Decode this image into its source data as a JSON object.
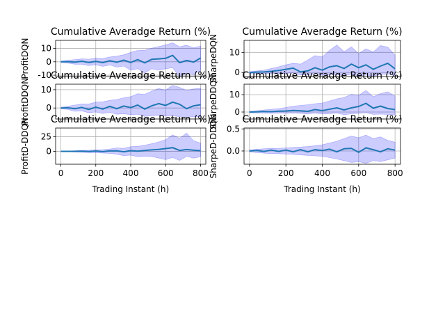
{
  "figure": {
    "band_color": "#0000ff",
    "band_alpha": 0.2,
    "line_color": "#1f77b4"
  },
  "chart_data": [
    {
      "type": "line",
      "title": "Cumulative Averadge Return (%)",
      "xlabel": "",
      "ylabel": "ProfitDQN",
      "xlim": [
        -30,
        830
      ],
      "ylim": [
        -11,
        16
      ],
      "xticks": [
        0,
        200,
        400,
        600,
        800
      ],
      "yticks": [
        -10,
        0,
        10
      ],
      "show_xticklabels": false,
      "grid": true,
      "x": [
        0,
        40,
        80,
        120,
        160,
        200,
        240,
        280,
        320,
        360,
        400,
        440,
        480,
        520,
        560,
        600,
        640,
        680,
        720,
        760,
        800
      ],
      "mean": [
        0,
        0.1,
        -0.2,
        0.4,
        -0.5,
        0.3,
        -0.6,
        0.8,
        -0.3,
        1.2,
        -0.5,
        1.6,
        -0.8,
        1.8,
        2.2,
        2.6,
        4.8,
        -0.6,
        1.0,
        -0.2,
        2.8
      ],
      "upper": [
        0.5,
        1.2,
        1.6,
        2.2,
        2.0,
        2.6,
        2.4,
        3.6,
        4.2,
        5.2,
        7.0,
        8.4,
        8.6,
        10.2,
        11.4,
        12.6,
        14.2,
        11.2,
        12.4,
        10.4,
        11.8
      ],
      "lower": [
        -0.5,
        -1.0,
        -1.8,
        -1.8,
        -2.8,
        -2.2,
        -3.4,
        -2.4,
        -4.0,
        -3.2,
        -6.2,
        -5.2,
        -8.4,
        -5.2,
        -6.2,
        -5.2,
        -4.4,
        -11.2,
        -8.4,
        -9.6,
        -6.4
      ]
    },
    {
      "type": "line",
      "title": "Cumulative Averadge Return (%)",
      "xlabel": "",
      "ylabel": "SharpeDQN",
      "xlim": [
        -30,
        830
      ],
      "ylim": [
        -2,
        16
      ],
      "xticks": [
        0,
        200,
        400,
        600,
        800
      ],
      "yticks": [
        0,
        10
      ],
      "show_xticklabels": false,
      "grid": true,
      "x": [
        0,
        40,
        80,
        120,
        160,
        200,
        240,
        280,
        320,
        360,
        400,
        440,
        480,
        520,
        560,
        600,
        640,
        680,
        720,
        760,
        800
      ],
      "mean": [
        0,
        0.2,
        0.3,
        0.6,
        1.0,
        1.6,
        2.2,
        0.3,
        0.8,
        2.4,
        1.2,
        2.8,
        3.4,
        2.0,
        4.2,
        2.4,
        3.8,
        1.6,
        3.2,
        4.6,
        1.8
      ],
      "upper": [
        0.4,
        0.8,
        1.2,
        2.0,
        2.8,
        3.8,
        4.6,
        4.2,
        6.2,
        8.4,
        7.8,
        11.0,
        13.6,
        10.4,
        12.8,
        9.4,
        11.8,
        10.2,
        13.4,
        12.6,
        8.6
      ],
      "lower": [
        -0.4,
        -0.4,
        -0.6,
        -0.6,
        -0.6,
        -0.4,
        -0.2,
        -1.2,
        -1.2,
        -0.6,
        -1.4,
        -1.0,
        -1.0,
        -1.6,
        -0.8,
        -1.8,
        -1.2,
        -1.8,
        -1.0,
        -0.8,
        -1.6
      ]
    },
    {
      "type": "line",
      "title": "Cumulative Averadge Return (%)",
      "xlabel": "",
      "ylabel": "ProfitDDQN",
      "xlim": [
        -30,
        830
      ],
      "ylim": [
        -6,
        13
      ],
      "xticks": [
        0,
        200,
        400,
        600,
        800
      ],
      "yticks": [
        0,
        10
      ],
      "show_xticklabels": false,
      "grid": true,
      "x": [
        0,
        40,
        80,
        120,
        160,
        200,
        240,
        280,
        320,
        360,
        400,
        440,
        480,
        520,
        560,
        600,
        640,
        680,
        720,
        760,
        800
      ],
      "mean": [
        0,
        0.1,
        -0.4,
        0.3,
        -0.8,
        0.5,
        -0.6,
        0.9,
        -0.4,
        1.1,
        0.2,
        1.6,
        -0.6,
        1.2,
        2.4,
        1.4,
        3.2,
        2.0,
        -0.4,
        1.2,
        1.8
      ],
      "upper": [
        0.4,
        1.0,
        1.6,
        2.2,
        2.2,
        3.2,
        3.4,
        4.2,
        4.6,
        5.6,
        6.2,
        7.8,
        7.4,
        9.2,
        10.6,
        9.8,
        12.4,
        11.2,
        9.6,
        10.4,
        10.8
      ],
      "lower": [
        -0.4,
        -0.8,
        -1.8,
        -1.6,
        -2.6,
        -2.2,
        -3.0,
        -2.4,
        -3.4,
        -3.2,
        -3.6,
        -3.4,
        -4.6,
        -4.2,
        -4.0,
        -4.4,
        -4.2,
        -4.8,
        -5.4,
        -4.6,
        -4.8
      ]
    },
    {
      "type": "line",
      "title": "Cumulative Averadge Return (%)",
      "xlabel": "",
      "ylabel": "SharpeDDQN",
      "xlim": [
        -30,
        830
      ],
      "ylim": [
        -4,
        16
      ],
      "xticks": [
        0,
        200,
        400,
        600,
        800
      ],
      "yticks": [
        0,
        10
      ],
      "show_xticklabels": false,
      "grid": true,
      "x": [
        0,
        40,
        80,
        120,
        160,
        200,
        240,
        280,
        320,
        360,
        400,
        440,
        480,
        520,
        560,
        600,
        640,
        680,
        720,
        760,
        800
      ],
      "mean": [
        0,
        0.1,
        0.3,
        0.2,
        0.5,
        0.6,
        0.9,
        0.7,
        0.4,
        1.4,
        0.8,
        1.6,
        2.4,
        1.2,
        2.4,
        3.2,
        5.0,
        2.2,
        3.4,
        2.0,
        1.4
      ],
      "upper": [
        0.4,
        0.8,
        1.2,
        1.6,
        2.0,
        2.6,
        3.4,
        3.8,
        4.2,
        4.8,
        5.2,
        6.4,
        7.6,
        8.4,
        10.2,
        9.6,
        12.4,
        8.8,
        10.6,
        11.6,
        9.2
      ],
      "lower": [
        -0.4,
        -0.6,
        -0.6,
        -0.8,
        -0.6,
        -0.8,
        -0.6,
        -0.8,
        -1.2,
        -0.6,
        -1.2,
        -1.0,
        -0.6,
        -1.6,
        -1.0,
        -0.8,
        -0.4,
        -1.4,
        -1.2,
        -1.4,
        -1.6
      ]
    },
    {
      "type": "line",
      "title": "Cumulative Averadge Return (%)",
      "xlabel": "Trading Instant (h)",
      "ylabel": "ProfitD-DDQN",
      "xlim": [
        -30,
        830
      ],
      "ylim": [
        -22,
        40
      ],
      "xticks": [
        0,
        200,
        400,
        600,
        800
      ],
      "yticks": [
        0,
        25
      ],
      "show_xticklabels": true,
      "grid": true,
      "x": [
        0,
        40,
        80,
        120,
        160,
        200,
        240,
        280,
        320,
        360,
        400,
        440,
        480,
        520,
        560,
        600,
        640,
        680,
        720,
        760,
        800
      ],
      "mean": [
        0,
        0.1,
        0,
        0.4,
        -0.2,
        0.6,
        -0.4,
        0.8,
        1.0,
        -0.6,
        1.2,
        0.4,
        1.6,
        2.6,
        3.4,
        4.8,
        6.4,
        1.6,
        3.2,
        2.0,
        1.2
      ],
      "upper": [
        0.4,
        0.8,
        1.2,
        1.6,
        2.0,
        2.6,
        3.0,
        4.0,
        6.0,
        5.2,
        8.0,
        8.6,
        10.6,
        13.0,
        16.2,
        20.2,
        28.4,
        22.4,
        31.2,
        18.2,
        14.2
      ],
      "lower": [
        -0.4,
        -0.8,
        -1.2,
        -1.6,
        -2.0,
        -2.2,
        -2.8,
        -3.4,
        -4.8,
        -7.4,
        -6.4,
        -9.2,
        -8.2,
        -8.8,
        -11.4,
        -14.2,
        -10.4,
        -15.6,
        -8.4,
        -11.6,
        -9.2
      ]
    },
    {
      "type": "line",
      "title": "Cumulative Averadge Return (%)",
      "xlabel": "Trading Instant (h)",
      "ylabel": "SharpeD-DDQN",
      "xlim": [
        -30,
        830
      ],
      "ylim": [
        -0.3,
        0.52
      ],
      "xticks": [
        0,
        200,
        400,
        600,
        800
      ],
      "yticks": [
        0.0,
        0.5
      ],
      "show_xticklabels": true,
      "grid": true,
      "x": [
        0,
        40,
        80,
        120,
        160,
        200,
        240,
        280,
        320,
        360,
        400,
        440,
        480,
        520,
        560,
        600,
        640,
        680,
        720,
        760,
        800
      ],
      "mean": [
        0,
        0.01,
        -0.01,
        0.02,
        -0.01,
        0.02,
        -0.02,
        0.03,
        -0.02,
        0.03,
        0.01,
        0.04,
        -0.02,
        0.05,
        0.06,
        -0.03,
        0.07,
        0.03,
        -0.02,
        0.05,
        0.02
      ],
      "upper": [
        0.02,
        0.04,
        0.05,
        0.06,
        0.06,
        0.07,
        0.08,
        0.09,
        0.1,
        0.12,
        0.14,
        0.18,
        0.22,
        0.28,
        0.34,
        0.3,
        0.36,
        0.28,
        0.32,
        0.24,
        0.2
      ],
      "lower": [
        -0.02,
        -0.04,
        -0.05,
        -0.06,
        -0.06,
        -0.07,
        -0.08,
        -0.09,
        -0.1,
        -0.11,
        -0.12,
        -0.15,
        -0.18,
        -0.22,
        -0.26,
        -0.24,
        -0.28,
        -0.22,
        -0.24,
        -0.2,
        -0.16
      ]
    }
  ]
}
